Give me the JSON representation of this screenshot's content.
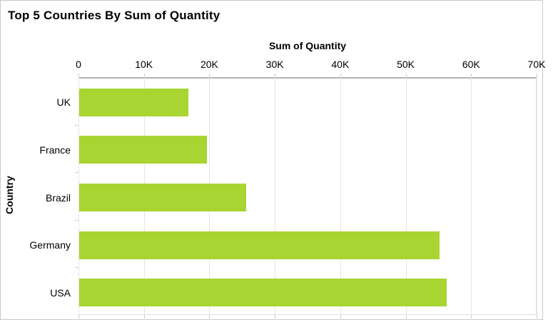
{
  "title": "Top 5 Countries By Sum of Quantity",
  "chart_data": {
    "type": "bar",
    "orientation": "horizontal",
    "title": "Top 5 Countries By Sum of Quantity",
    "xlabel": "Sum of Quantity",
    "ylabel": "Country",
    "categories": [
      "UK",
      "France",
      "Brazil",
      "Germany",
      "USA"
    ],
    "values": [
      16650,
      19500,
      25550,
      55050,
      56200
    ],
    "xlim": [
      0,
      70000
    ],
    "x_ticks": [
      0,
      10000,
      20000,
      30000,
      40000,
      50000,
      60000,
      70000
    ],
    "x_tick_labels": [
      "0",
      "10K",
      "20K",
      "30K",
      "40K",
      "50K",
      "60K",
      "70K"
    ],
    "grid": true,
    "legend": false,
    "bar_color": "#a8d532"
  },
  "colors": {
    "bar": "#a8d532",
    "axis_line": "#b2b2b2",
    "gridline": "#e6e6e6",
    "text": "#000000",
    "outer_border": "#c9c9c9"
  }
}
